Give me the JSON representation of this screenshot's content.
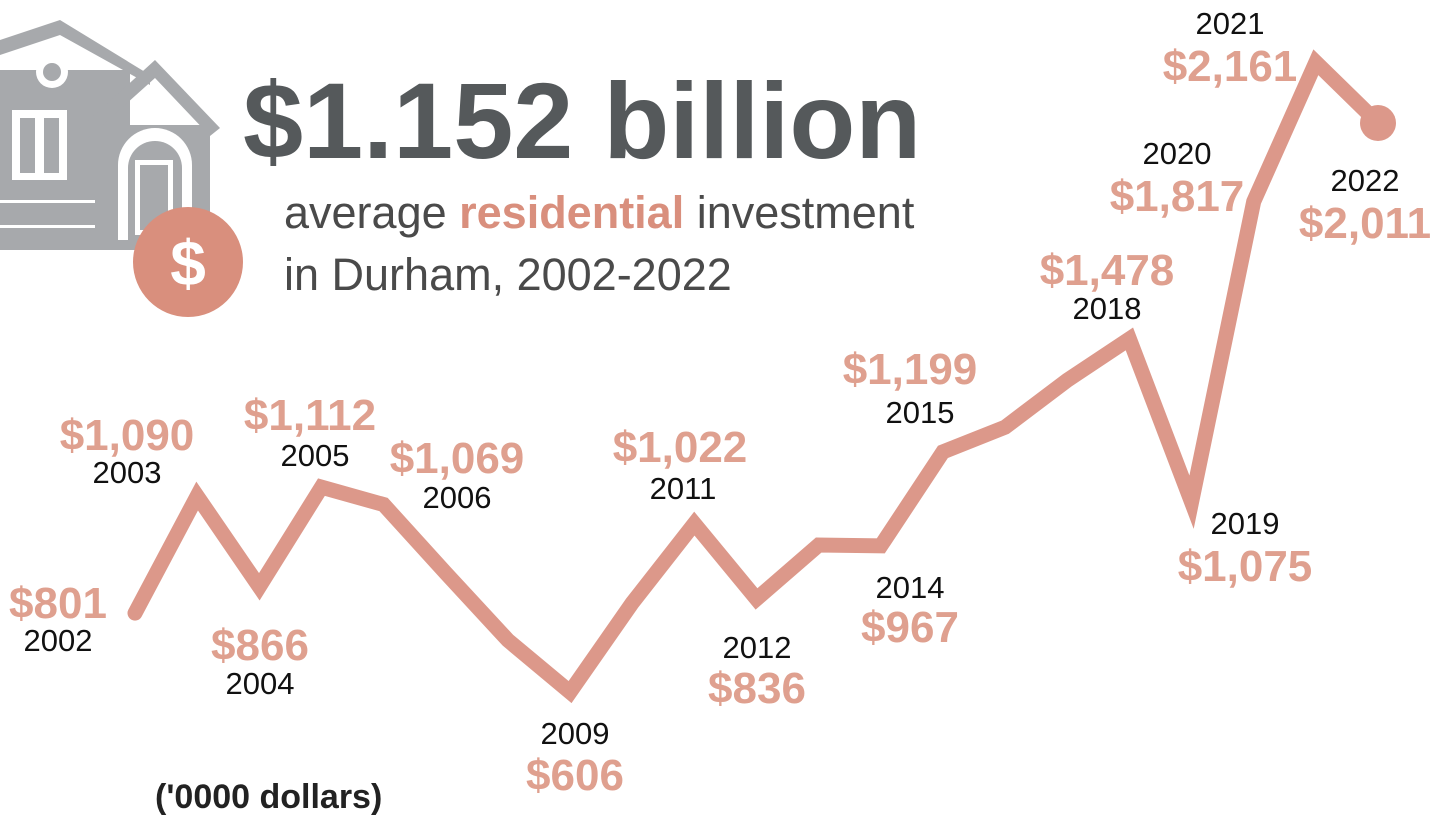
{
  "title": "$1.152 billion",
  "subtitle": {
    "before": "average ",
    "highlight": "residential",
    "after": " investment",
    "line2": "in Durham, 2002-2022"
  },
  "icon_label": "$",
  "unit_note": "('0000 dollars)",
  "chart_data": {
    "type": "line",
    "color": "#dc988a",
    "categories": [
      "2002",
      "2003",
      "2004",
      "2005",
      "2006",
      null,
      null,
      "2009",
      null,
      "2011",
      "2012",
      null,
      "2014",
      "2015",
      null,
      null,
      "2018",
      "2019",
      "2020",
      "2021",
      "2022"
    ],
    "values": [
      801,
      1090,
      866,
      1112,
      1069,
      900,
      734,
      606,
      826,
      1022,
      836,
      969,
      967,
      1199,
      1260,
      1376,
      1478,
      1075,
      1817,
      2161,
      2011
    ],
    "value_labels": [
      "$801",
      "$1,090",
      "$866",
      "$1,112",
      "$1,069",
      null,
      null,
      "$606",
      null,
      "$1,022",
      "$836",
      null,
      "$967",
      "$1,199",
      null,
      null,
      "$1,478",
      "$1,075",
      "$1,817",
      "$2,161",
      "$2,011"
    ]
  }
}
